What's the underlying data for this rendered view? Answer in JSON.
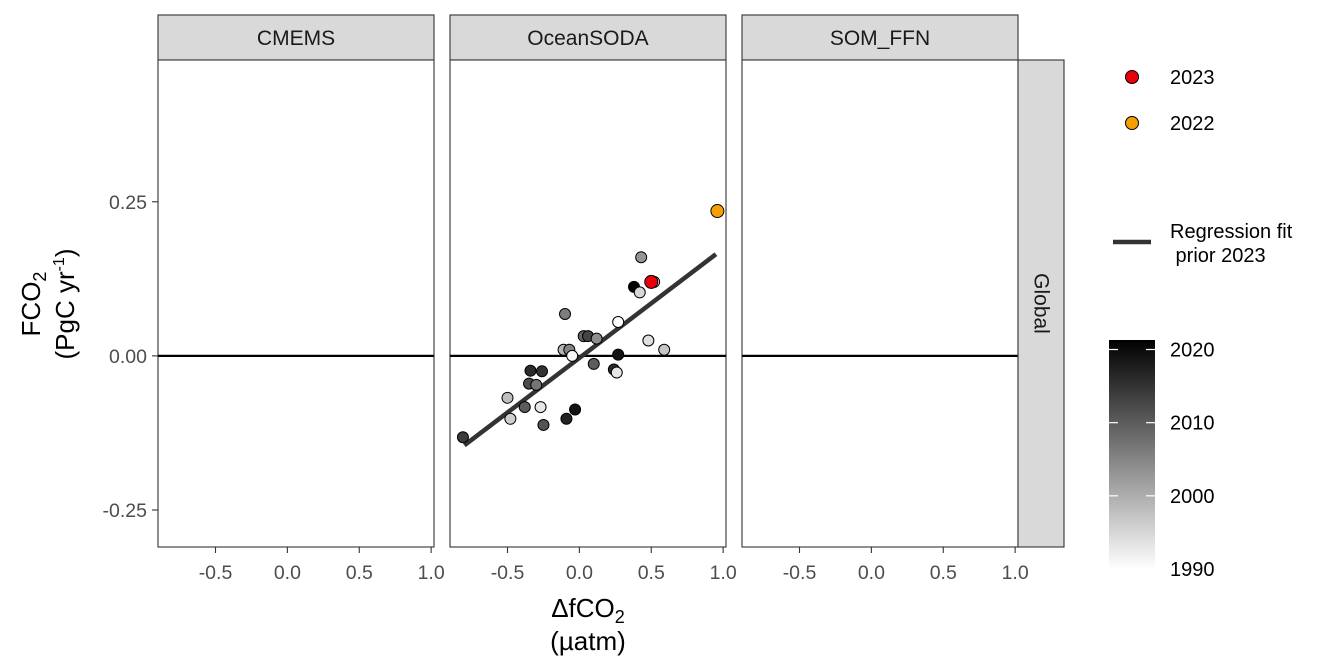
{
  "chart_data": {
    "type": "scatter",
    "xlabel": "ΔfCO2",
    "xlabel_main": "ΔfCO",
    "xlabel_sub": "2",
    "xlabel_unit": "(µatm)",
    "ylabel_main": "FCO",
    "ylabel_sub": "2",
    "ylabel_unit_pre": "(PgC yr",
    "ylabel_unit_sup": "-1",
    "ylabel_unit_post": ")",
    "xlim": [
      -0.9,
      1.02
    ],
    "ylim": [
      -0.31,
      0.48
    ],
    "x_ticks": [
      -0.5,
      0.0,
      0.5,
      1.0
    ],
    "x_tick_labels": [
      "-0.5",
      "0.0",
      "0.5",
      "1.0"
    ],
    "y_ticks": [
      -0.25,
      0.0,
      0.25
    ],
    "y_tick_labels": [
      "-0.25",
      "0.00",
      "0.25"
    ],
    "grid": false,
    "reference_line_y": 0,
    "row_strip": "Global",
    "panels": [
      {
        "strip": "CMEMS",
        "points": [],
        "fit": null
      },
      {
        "strip": "OceanSODA",
        "fit": {
          "x": [
            -0.8,
            0.95
          ],
          "y": [
            -0.145,
            0.165
          ]
        },
        "points": [
          {
            "x": -0.81,
            "y": -0.132,
            "year": 2014
          },
          {
            "x": -0.5,
            "y": -0.068,
            "year": 1998
          },
          {
            "x": -0.48,
            "y": -0.102,
            "year": 1996
          },
          {
            "x": -0.38,
            "y": -0.083,
            "year": 2010
          },
          {
            "x": -0.35,
            "y": -0.045,
            "year": 2012
          },
          {
            "x": -0.34,
            "y": -0.024,
            "year": 2016
          },
          {
            "x": -0.3,
            "y": -0.047,
            "year": 2007
          },
          {
            "x": -0.27,
            "y": -0.083,
            "year": 1993
          },
          {
            "x": -0.26,
            "y": -0.025,
            "year": 2015
          },
          {
            "x": -0.25,
            "y": -0.112,
            "year": 2011
          },
          {
            "x": -0.1,
            "y": 0.068,
            "year": 2006
          },
          {
            "x": -0.11,
            "y": 0.01,
            "year": 1999
          },
          {
            "x": -0.09,
            "y": -0.102,
            "year": 2017
          },
          {
            "x": -0.07,
            "y": 0.01,
            "year": 2005
          },
          {
            "x": -0.05,
            "y": 0.0,
            "year": 1991
          },
          {
            "x": -0.03,
            "y": -0.087,
            "year": 2019
          },
          {
            "x": 0.03,
            "y": 0.032,
            "year": 2009
          },
          {
            "x": 0.06,
            "y": 0.032,
            "year": 2013
          },
          {
            "x": 0.1,
            "y": -0.013,
            "year": 2010
          },
          {
            "x": 0.12,
            "y": 0.028,
            "year": 2004
          },
          {
            "x": 0.24,
            "y": -0.022,
            "year": 2016
          },
          {
            "x": 0.26,
            "y": -0.027,
            "year": 1993
          },
          {
            "x": 0.27,
            "y": 0.055,
            "year": 1990
          },
          {
            "x": 0.27,
            "y": 0.002,
            "year": 2019
          },
          {
            "x": 0.38,
            "y": 0.112,
            "year": 2021
          },
          {
            "x": 0.42,
            "y": 0.103,
            "year": 1995
          },
          {
            "x": 0.43,
            "y": 0.16,
            "year": 2003
          },
          {
            "x": 0.48,
            "y": 0.025,
            "year": 1994
          },
          {
            "x": 0.52,
            "y": 0.12,
            "year": 1994
          },
          {
            "x": 0.59,
            "y": 0.01,
            "year": 1997
          },
          {
            "x": 0.5,
            "y": 0.12,
            "year": 2023,
            "highlight": "2023"
          },
          {
            "x": 0.96,
            "y": 0.235,
            "year": 2022,
            "highlight": "2022"
          }
        ]
      },
      {
        "strip": "SOM_FFN",
        "points": [],
        "fit": null
      }
    ],
    "legend": {
      "placement": "right",
      "highlights": [
        {
          "label": "2023",
          "color": "#e8000b"
        },
        {
          "label": "2022",
          "color": "#f5a000"
        }
      ],
      "line": {
        "label_line1": "Regression fit",
        "label_line2": " prior 2023"
      },
      "colorbar": {
        "ticks": [
          2020,
          2010,
          2000,
          1990
        ],
        "labels": [
          "2020",
          "2010",
          "2000",
          "1990"
        ],
        "range": [
          1990,
          2021.3
        ],
        "low_color": "#ffffff",
        "high_color": "#000000"
      }
    }
  }
}
